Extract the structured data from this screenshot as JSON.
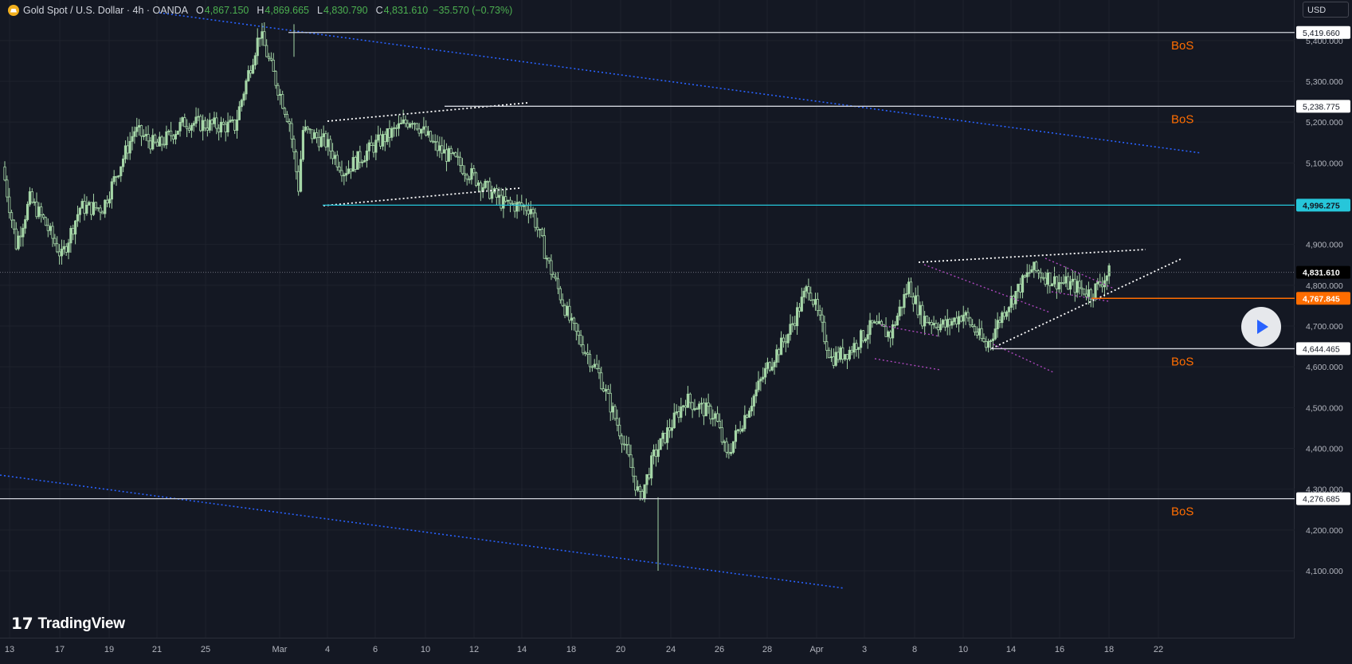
{
  "header": {
    "symbol_title": "Gold Spot / U.S. Dollar · 4h · OANDA",
    "open_label": "O",
    "open_value": "4,867.150",
    "high_label": "H",
    "high_value": "4,869.665",
    "low_label": "L",
    "low_value": "4,830.790",
    "close_label": "C",
    "close_value": "4,831.610",
    "change_value": "−35.570 (−0.73%)",
    "currency": "USD"
  },
  "logo": {
    "text": "TradingView",
    "icon": "tradingview-logo-icon"
  },
  "play_button": {
    "icon": "play-icon"
  },
  "colors": {
    "background": "#141823",
    "grid": "#1e222d",
    "candle": "#a5d6a7",
    "resistance_line": "#d1d4dc",
    "support_cyan": "#26c6da",
    "current_level": "#ff6d00",
    "trend_dotted_blue": "#2962ff",
    "channel_magenta": "#ab47bc",
    "bos_label": "#ff6d00"
  },
  "price_axis": {
    "ticks": [
      "5,400.000",
      "5,300.000",
      "5,200.000",
      "5,100.000",
      "4,900.000",
      "4,800.000",
      "4,700.000",
      "4,600.000",
      "4,500.000",
      "4,400.000",
      "4,300.000",
      "4,200.000",
      "4,100.000"
    ],
    "tick_values": [
      5400,
      5300,
      5200,
      5100,
      4900,
      4800,
      4700,
      4600,
      4500,
      4400,
      4300,
      4200,
      4100
    ]
  },
  "time_axis": {
    "labels": [
      "13",
      "17",
      "19",
      "21",
      "25",
      "Mar",
      "4",
      "6",
      "10",
      "12",
      "14",
      "18",
      "20",
      "24",
      "26",
      "28",
      "Apr",
      "3",
      "8",
      "10",
      "14",
      "16",
      "18",
      "22"
    ]
  },
  "levels": [
    {
      "price": 5419.66,
      "label": "5,419.660",
      "style": "resistance",
      "bos": "BoS"
    },
    {
      "price": 5238.775,
      "label": "5,238.775",
      "style": "resistance",
      "bos": "BoS"
    },
    {
      "price": 4996.275,
      "label": "4,996.275",
      "style": "support_cyan",
      "bos": ""
    },
    {
      "price": 4831.61,
      "label": "4,831.610",
      "style": "last_price",
      "bos": ""
    },
    {
      "price": 4767.845,
      "label": "4,767.845",
      "style": "current",
      "bos": ""
    },
    {
      "price": 4644.465,
      "label": "4,644.465",
      "style": "resistance",
      "bos": "BoS"
    },
    {
      "price": 4276.685,
      "label": "4,276.685",
      "style": "resistance",
      "bos": "BoS"
    }
  ],
  "chart_data": {
    "type": "candlestick",
    "timeframe": "4h",
    "price_range": [
      4080,
      5460
    ],
    "bars_shown": 270,
    "path_anchors": [
      [
        0,
        5090
      ],
      [
        6,
        4900
      ],
      [
        12,
        5010
      ],
      [
        18,
        4960
      ],
      [
        26,
        4870
      ],
      [
        34,
        4990
      ],
      [
        44,
        4990
      ],
      [
        58,
        5180
      ],
      [
        68,
        5140
      ],
      [
        80,
        5200
      ],
      [
        96,
        5190
      ],
      [
        102,
        5190
      ],
      [
        108,
        5320
      ],
      [
        113,
        5419
      ],
      [
        120,
        5300
      ],
      [
        126,
        5200
      ],
      [
        130,
        5040
      ],
      [
        132,
        5180
      ],
      [
        142,
        5150
      ],
      [
        150,
        5080
      ],
      [
        165,
        5150
      ],
      [
        180,
        5210
      ],
      [
        190,
        5140
      ],
      [
        200,
        5100
      ],
      [
        210,
        5050
      ],
      [
        220,
        5000
      ],
      [
        232,
        4990
      ],
      [
        240,
        4850
      ],
      [
        250,
        4700
      ],
      [
        262,
        4580
      ],
      [
        272,
        4430
      ],
      [
        280,
        4276
      ],
      [
        286,
        4380
      ],
      [
        300,
        4520
      ],
      [
        313,
        4480
      ],
      [
        318,
        4380
      ],
      [
        326,
        4480
      ],
      [
        336,
        4600
      ],
      [
        345,
        4680
      ],
      [
        354,
        4800
      ],
      [
        364,
        4620
      ],
      [
        372,
        4640
      ],
      [
        382,
        4700
      ],
      [
        390,
        4680
      ],
      [
        398,
        4800
      ],
      [
        404,
        4720
      ],
      [
        414,
        4700
      ],
      [
        422,
        4730
      ],
      [
        432,
        4650
      ],
      [
        440,
        4740
      ],
      [
        452,
        4840
      ],
      [
        462,
        4810
      ],
      [
        470,
        4800
      ],
      [
        478,
        4780
      ],
      [
        486,
        4830
      ]
    ]
  }
}
